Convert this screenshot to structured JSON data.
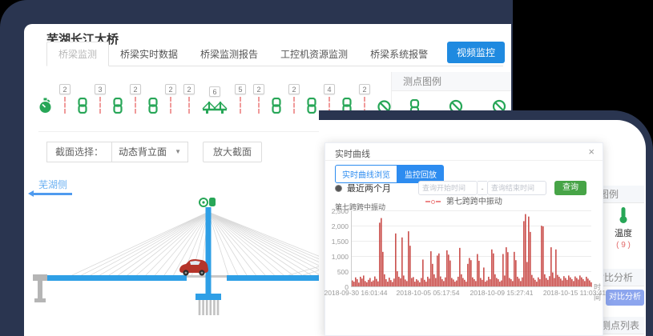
{
  "app": {
    "title": "芜湖长江大桥"
  },
  "tabs": [
    {
      "label": "桥梁监测",
      "active": true
    },
    {
      "label": "桥梁实时数据",
      "active": false
    },
    {
      "label": "桥梁监测报告",
      "active": false
    },
    {
      "label": "工控机资源监测",
      "active": false
    },
    {
      "label": "桥梁系统报警",
      "active": false
    }
  ],
  "video_button": "视频监控",
  "sensor_row": {
    "items": [
      {
        "icon": "stopwatch",
        "badge": ""
      },
      {
        "icon": "dash",
        "badge": "2"
      },
      {
        "icon": "link",
        "badge": ""
      },
      {
        "icon": "dash",
        "badge": "3"
      },
      {
        "icon": "link",
        "badge": ""
      },
      {
        "icon": "dash",
        "badge": "2"
      },
      {
        "icon": "link",
        "badge": ""
      },
      {
        "icon": "dash",
        "badge": "2"
      },
      {
        "icon": "dash",
        "badge": "2"
      },
      {
        "icon": "bridge",
        "badge": "6"
      },
      {
        "icon": "dash",
        "badge": "5"
      },
      {
        "icon": "dash",
        "badge": "2"
      },
      {
        "icon": "link",
        "badge": ""
      },
      {
        "icon": "dash",
        "badge": "2"
      },
      {
        "icon": "link",
        "badge": ""
      },
      {
        "icon": "dash",
        "badge": "4"
      },
      {
        "icon": "link",
        "badge": ""
      },
      {
        "icon": "dash",
        "badge": "2"
      },
      {
        "icon": "ban",
        "badge": ""
      }
    ]
  },
  "legend_panel": {
    "title": "测点图例"
  },
  "section_bar": {
    "label": "截面选择：",
    "select_value": "动态背立面",
    "zoom_button": "放大截面"
  },
  "bridge": {
    "side_label": "芜湖侧"
  },
  "right_panel": {
    "legend_title": "测点图例",
    "temp_label": "温度",
    "temp_count": "( 9 )",
    "compare_title": "对比分析",
    "compare_button": "对比分析",
    "list_title": "对比测点列表"
  },
  "modal": {
    "title": "实时曲线",
    "close": "×",
    "tabs": [
      {
        "label": "实时曲线浏览",
        "active": false
      },
      {
        "label": "监控回放",
        "active": true
      }
    ],
    "radio_label": "最近两个月",
    "start_placeholder": "查询开始时间",
    "separator": "-",
    "end_placeholder": "查询结束时间",
    "query_button": "查询",
    "legend": "第七跨跨中振动"
  },
  "chart_data": {
    "type": "bar",
    "title": "第七跨跨中振动",
    "ylabel": "第七跨跨中振动",
    "xlabel": "时间",
    "ylim": [
      0,
      2500
    ],
    "grid": true,
    "legend_position": "top",
    "yticks": [
      "2,500",
      "2,000",
      "1,500",
      "1,000",
      "500",
      "0"
    ],
    "xticklabels": [
      "2018-09-30 16:01:44",
      "2018-10-05 05:17:54",
      "2018-10-09 15:27:41",
      "2018-10-15 11:03:41"
    ],
    "series": [
      {
        "name": "第七跨跨中振动",
        "color": "#c23531",
        "values": [
          220,
          180,
          320,
          260,
          150,
          340,
          280,
          380,
          200,
          160,
          240,
          300,
          180,
          220,
          350,
          270,
          190,
          2100,
          2250,
          1150,
          420,
          260,
          180,
          310,
          230,
          170,
          280,
          1750,
          520,
          340,
          290,
          1620,
          380,
          250,
          200,
          1820,
          1350,
          300,
          330,
          180,
          260,
          220,
          160,
          300,
          900,
          240,
          180,
          340,
          280,
          1170,
          760,
          420,
          300,
          1030,
          1100,
          350,
          260,
          200,
          320,
          1200,
          1060,
          870,
          300,
          250,
          180,
          220,
          340,
          1280,
          420,
          300,
          240,
          180,
          760,
          950,
          880,
          320,
          260,
          200,
          1080,
          860,
          300,
          240,
          640,
          180,
          220,
          340,
          260,
          1230,
          1100,
          420,
          300,
          260,
          180,
          220,
          1080,
          380,
          1300,
          1140,
          300,
          260,
          200,
          1150,
          880,
          340,
          280,
          200,
          320,
          2150,
          2380,
          820,
          2300,
          1800,
          400,
          300,
          240,
          180,
          320,
          260,
          2000,
          1980,
          420,
          300,
          240,
          360,
          1300,
          480,
          300,
          1230,
          400,
          340,
          280,
          220,
          360,
          300,
          240,
          380,
          320,
          260,
          200,
          350,
          300,
          250,
          380,
          320,
          260,
          200,
          340,
          280,
          220,
          160
        ]
      }
    ]
  }
}
